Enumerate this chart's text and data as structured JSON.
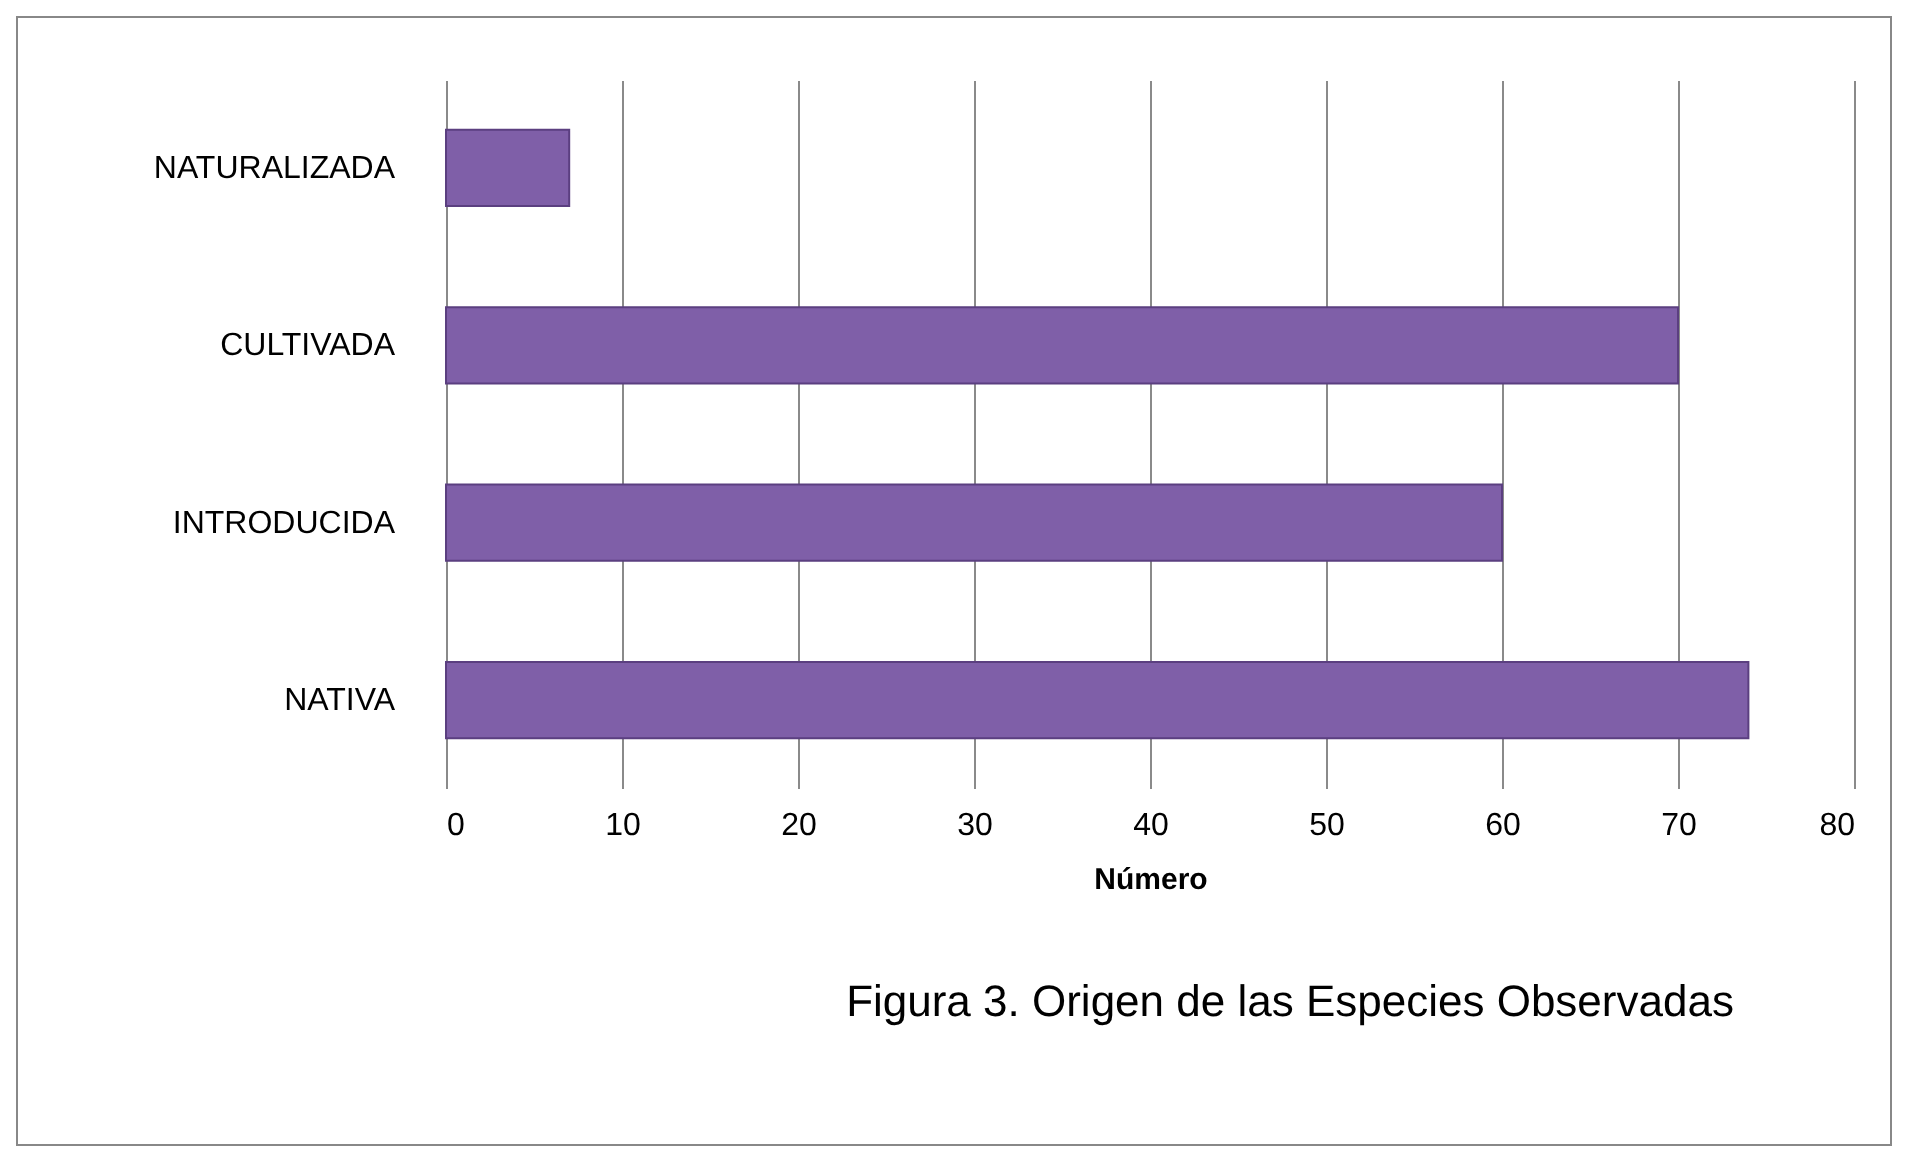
{
  "chart_data": {
    "type": "bar",
    "orientation": "horizontal",
    "title": "Figura 3. Origen de las Especies Observadas",
    "xlabel": "Número",
    "categories": [
      "NATURALIZADA",
      "CULTIVADA",
      "INTRODUCIDA",
      "NATIVA"
    ],
    "values": [
      7,
      70,
      60,
      74
    ],
    "color": "#7f5fa8",
    "xlim": [
      0,
      80
    ],
    "xticks": [
      0,
      10,
      20,
      30,
      40,
      50,
      60,
      70,
      80
    ],
    "grid": "x"
  }
}
